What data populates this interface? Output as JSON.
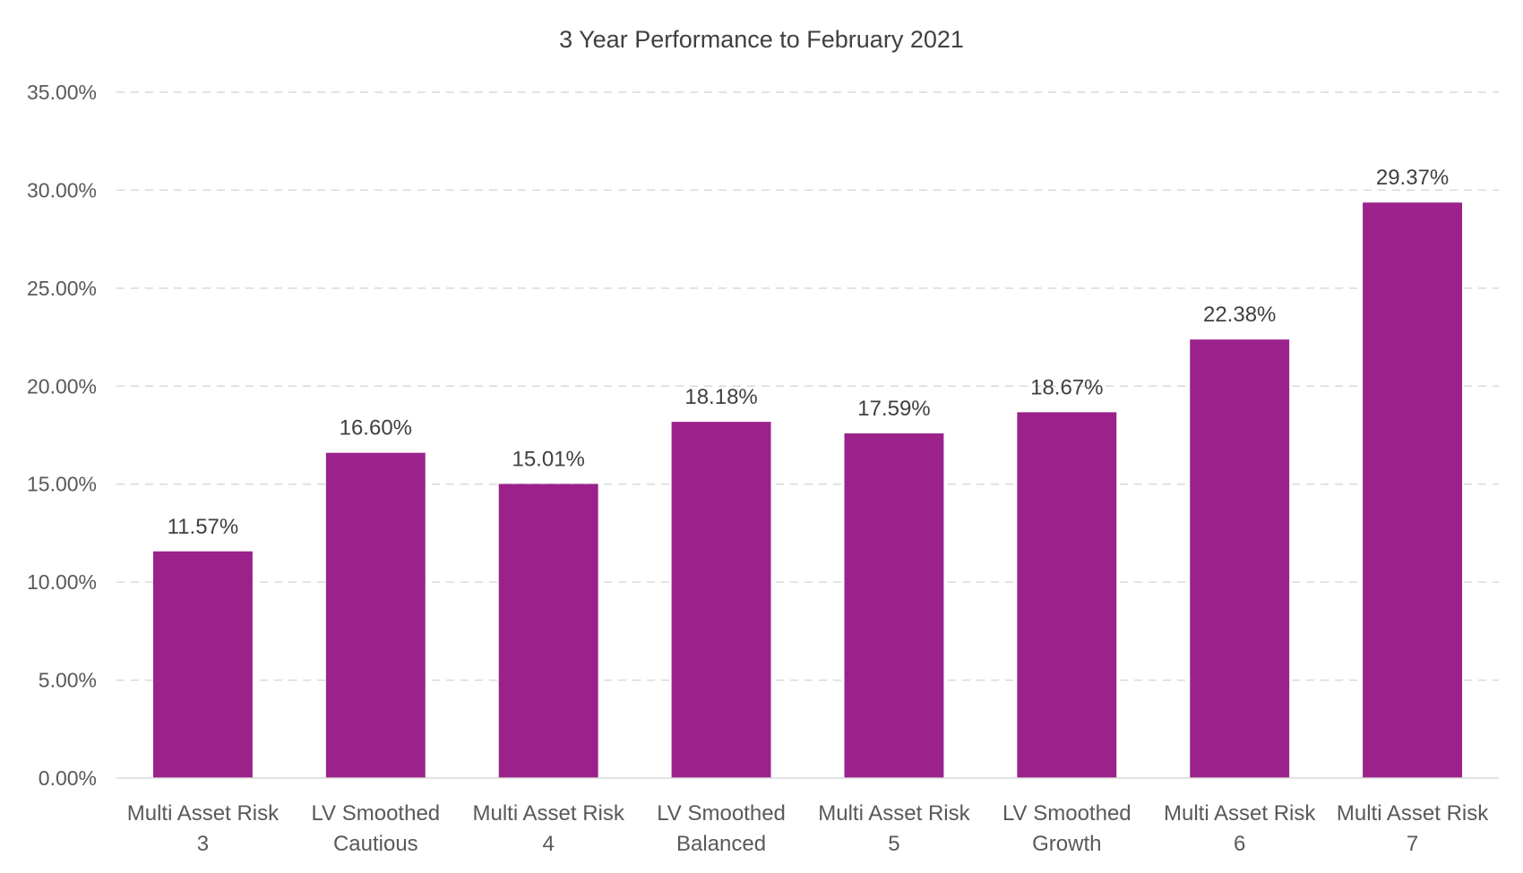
{
  "chart_data": {
    "type": "bar",
    "title": "3 Year Performance to February 2021",
    "xlabel": "",
    "ylabel": "",
    "categories": [
      [
        "Multi Asset Risk",
        "3"
      ],
      [
        "LV Smoothed",
        "Cautious"
      ],
      [
        "Multi Asset Risk",
        "4"
      ],
      [
        "LV Smoothed",
        "Balanced"
      ],
      [
        "Multi Asset Risk",
        "5"
      ],
      [
        "LV Smoothed",
        "Growth"
      ],
      [
        "Multi Asset Risk",
        "6"
      ],
      [
        "Multi Asset Risk",
        "7"
      ]
    ],
    "values": [
      11.57,
      16.6,
      15.01,
      18.18,
      17.59,
      18.67,
      22.38,
      29.37
    ],
    "data_labels": [
      "11.57%",
      "16.60%",
      "15.01%",
      "18.18%",
      "17.59%",
      "18.67%",
      "22.38%",
      "29.37%"
    ],
    "ylim": [
      0,
      35
    ],
    "yticks": [
      0,
      5,
      10,
      15,
      20,
      25,
      30,
      35
    ],
    "ytick_labels": [
      "0.00%",
      "5.00%",
      "10.00%",
      "15.00%",
      "20.00%",
      "25.00%",
      "30.00%",
      "35.00%"
    ],
    "grid": true,
    "legend": "none",
    "bar_color": "#9b228b"
  }
}
